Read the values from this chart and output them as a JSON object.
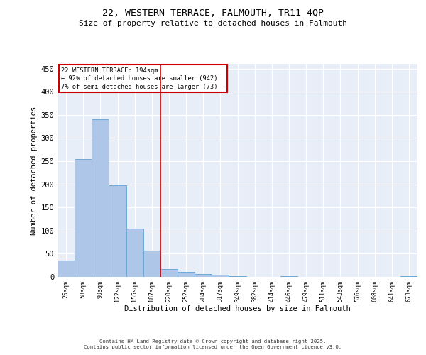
{
  "title_line1": "22, WESTERN TERRACE, FALMOUTH, TR11 4QP",
  "title_line2": "Size of property relative to detached houses in Falmouth",
  "xlabel": "Distribution of detached houses by size in Falmouth",
  "ylabel": "Number of detached properties",
  "bar_labels": [
    "25sqm",
    "58sqm",
    "90sqm",
    "122sqm",
    "155sqm",
    "187sqm",
    "220sqm",
    "252sqm",
    "284sqm",
    "317sqm",
    "349sqm",
    "382sqm",
    "414sqm",
    "446sqm",
    "479sqm",
    "511sqm",
    "543sqm",
    "576sqm",
    "608sqm",
    "641sqm",
    "673sqm"
  ],
  "bar_values": [
    35,
    255,
    340,
    198,
    105,
    57,
    17,
    10,
    6,
    4,
    1,
    0,
    0,
    2,
    0,
    0,
    0,
    0,
    0,
    0,
    2
  ],
  "bar_color": "#aec6e8",
  "bar_edge_color": "#6fa8d6",
  "vline_x": 5.5,
  "vline_color": "#cc0000",
  "annotation_text": "22 WESTERN TERRACE: 194sqm\n← 92% of detached houses are smaller (942)\n7% of semi-detached houses are larger (73) →",
  "annotation_box_color": "white",
  "annotation_box_edge_color": "#cc0000",
  "ylim": [
    0,
    460
  ],
  "yticks": [
    0,
    50,
    100,
    150,
    200,
    250,
    300,
    350,
    400,
    450
  ],
  "bg_color": "#e8eef8",
  "footer_line1": "Contains HM Land Registry data © Crown copyright and database right 2025.",
  "footer_line2": "Contains public sector information licensed under the Open Government Licence v3.0."
}
